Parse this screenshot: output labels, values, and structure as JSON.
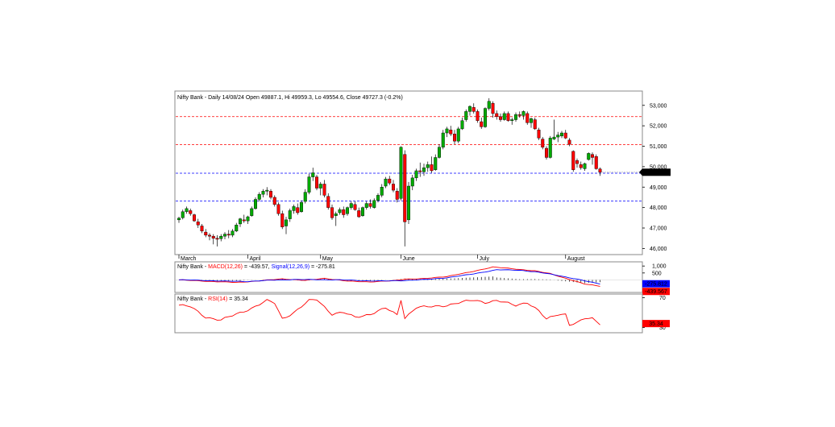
{
  "chart_data": [
    {
      "type": "candlestick",
      "header": {
        "symbol": "Nifty Bank",
        "period": "Daily",
        "date": "14/08/24",
        "open_label": "Open",
        "open": "49887.1",
        "high_label": "Hi",
        "high": "49959.3",
        "low_label": "Lo",
        "low": "49554.6",
        "close_label": "Close",
        "close": "49727.3",
        "change": "(-0.2%)"
      },
      "y_ticks": [
        "53,000",
        "52,000",
        "51,000",
        "50,000",
        "49,000",
        "48,000",
        "47,000",
        "46,000"
      ],
      "y_tick_values": [
        53000,
        52000,
        51000,
        50000,
        49000,
        48000,
        47000,
        46000
      ],
      "ylim": [
        45700,
        53700
      ],
      "x_month_labels": [
        {
          "label": "March",
          "index": 0
        },
        {
          "label": "April",
          "index": 18
        },
        {
          "label": "May",
          "index": 37
        },
        {
          "label": "June",
          "index": 58
        },
        {
          "label": "July",
          "index": 78
        },
        {
          "label": "August",
          "index": 101
        }
      ],
      "last_price_label": "49,727.3",
      "last_price_value": 49727.3,
      "horizontal_levels": [
        {
          "value": 52450,
          "color": "#ff0000"
        },
        {
          "value": 51080,
          "color": "#ff0000"
        },
        {
          "value": 49680,
          "color": "#0000ff"
        },
        {
          "value": 48320,
          "color": "#0000ff"
        }
      ],
      "up_color": "#00aa00",
      "down_color": "#ff0000",
      "ohlc": [
        [
          47400,
          47550,
          47250,
          47480
        ],
        [
          47500,
          47900,
          47420,
          47800
        ],
        [
          47800,
          48050,
          47700,
          47950
        ],
        [
          47850,
          47950,
          47600,
          47700
        ],
        [
          47650,
          47700,
          47300,
          47350
        ],
        [
          47300,
          47450,
          47000,
          47150
        ],
        [
          47100,
          47200,
          46750,
          46850
        ],
        [
          46800,
          46950,
          46550,
          46650
        ],
        [
          46650,
          46750,
          46400,
          46600
        ],
        [
          46600,
          46700,
          46200,
          46500
        ],
        [
          46500,
          46650,
          46100,
          46450
        ],
        [
          46480,
          46700,
          46350,
          46600
        ],
        [
          46600,
          46800,
          46450,
          46700
        ],
        [
          46700,
          46900,
          46500,
          46650
        ],
        [
          46650,
          46950,
          46550,
          46850
        ],
        [
          46850,
          47250,
          46800,
          47150
        ],
        [
          47200,
          47500,
          47050,
          47450
        ],
        [
          47400,
          47650,
          47250,
          47350
        ],
        [
          47350,
          47600,
          47200,
          47550
        ],
        [
          47600,
          48050,
          47550,
          47950
        ],
        [
          47950,
          48500,
          47900,
          48400
        ],
        [
          48400,
          48750,
          48300,
          48650
        ],
        [
          48650,
          48900,
          48500,
          48800
        ],
        [
          48800,
          49000,
          48600,
          48850
        ],
        [
          48800,
          48900,
          48400,
          48500
        ],
        [
          48500,
          48600,
          48050,
          48150
        ],
        [
          48150,
          48250,
          47600,
          47700
        ],
        [
          47700,
          47850,
          46950,
          47050
        ],
        [
          47100,
          47550,
          46700,
          47400
        ],
        [
          47450,
          47950,
          47300,
          47850
        ],
        [
          47850,
          48150,
          47700,
          48050
        ],
        [
          48000,
          48200,
          47650,
          47750
        ],
        [
          47800,
          48350,
          47750,
          48250
        ],
        [
          48300,
          48900,
          48200,
          48750
        ],
        [
          48750,
          49650,
          48650,
          49500
        ],
        [
          49500,
          49950,
          49300,
          49700
        ],
        [
          49500,
          49600,
          48850,
          48950
        ],
        [
          48950,
          49250,
          48600,
          49150
        ],
        [
          49150,
          49350,
          48500,
          48600
        ],
        [
          48550,
          48700,
          47900,
          48000
        ],
        [
          48000,
          48150,
          47400,
          47500
        ],
        [
          47600,
          47800,
          47100,
          47700
        ],
        [
          47750,
          48000,
          47650,
          47900
        ],
        [
          47900,
          48050,
          47500,
          47650
        ],
        [
          47700,
          48050,
          47600,
          48000
        ],
        [
          48000,
          48300,
          47900,
          48200
        ],
        [
          48150,
          48300,
          47850,
          47900
        ],
        [
          47850,
          48000,
          47500,
          47550
        ],
        [
          47600,
          48050,
          47550,
          48000
        ],
        [
          48000,
          48300,
          47900,
          48200
        ],
        [
          48200,
          48400,
          47950,
          48050
        ],
        [
          48000,
          48450,
          47950,
          48350
        ],
        [
          48350,
          48700,
          48250,
          48600
        ],
        [
          48600,
          49150,
          48500,
          49000
        ],
        [
          49050,
          49500,
          48950,
          49400
        ],
        [
          49400,
          49550,
          49100,
          49200
        ],
        [
          49150,
          49350,
          48750,
          48850
        ],
        [
          48800,
          48950,
          48250,
          48400
        ],
        [
          48450,
          51000,
          48350,
          50950
        ],
        [
          50600,
          50800,
          46100,
          47300
        ],
        [
          47400,
          49250,
          47200,
          49050
        ],
        [
          49050,
          49600,
          48850,
          49450
        ],
        [
          49450,
          49900,
          49300,
          49800
        ],
        [
          49800,
          50200,
          49500,
          49750
        ],
        [
          49750,
          50150,
          49550,
          49950
        ],
        [
          49950,
          50250,
          49750,
          50100
        ],
        [
          50100,
          50500,
          49700,
          49800
        ],
        [
          49850,
          50600,
          49800,
          50450
        ],
        [
          50450,
          51100,
          50400,
          50950
        ],
        [
          50950,
          51800,
          50850,
          51650
        ],
        [
          51650,
          51950,
          51450,
          51850
        ],
        [
          51800,
          52000,
          51500,
          51600
        ],
        [
          51600,
          51800,
          51100,
          51250
        ],
        [
          51250,
          51950,
          51150,
          51850
        ],
        [
          51850,
          52400,
          51800,
          52250
        ],
        [
          52300,
          52800,
          52200,
          52700
        ],
        [
          52700,
          53000,
          52500,
          52950
        ],
        [
          52900,
          53100,
          52600,
          52700
        ],
        [
          52700,
          52800,
          52150,
          52250
        ],
        [
          52200,
          52400,
          51850,
          51950
        ],
        [
          51950,
          52900,
          51900,
          52850
        ],
        [
          52850,
          53350,
          52750,
          53200
        ],
        [
          53100,
          53200,
          52400,
          52600
        ],
        [
          52600,
          52750,
          52300,
          52450
        ],
        [
          52450,
          52600,
          52200,
          52300
        ],
        [
          52300,
          52700,
          52250,
          52600
        ],
        [
          52600,
          52700,
          52200,
          52250
        ],
        [
          52250,
          52400,
          52050,
          52300
        ],
        [
          52300,
          52650,
          52200,
          52550
        ],
        [
          52550,
          52700,
          52400,
          52500
        ],
        [
          52500,
          52750,
          52300,
          52700
        ],
        [
          52600,
          52700,
          52050,
          52150
        ],
        [
          52150,
          52400,
          51900,
          52350
        ],
        [
          52300,
          52400,
          51800,
          51850
        ],
        [
          51800,
          51900,
          51300,
          51400
        ],
        [
          51350,
          51450,
          50850,
          50950
        ],
        [
          50900,
          51000,
          50350,
          50450
        ],
        [
          50450,
          51500,
          50400,
          51400
        ],
        [
          51350,
          52300,
          51300,
          51450
        ],
        [
          51450,
          51700,
          51200,
          51550
        ],
        [
          51500,
          51750,
          51400,
          51650
        ],
        [
          51650,
          51800,
          51350,
          51400
        ],
        [
          51300,
          51400,
          51000,
          51100
        ],
        [
          50750,
          50800,
          49750,
          49850
        ],
        [
          50300,
          50400,
          49950,
          50150
        ],
        [
          50100,
          50250,
          49850,
          49950
        ],
        [
          49900,
          50200,
          49800,
          50150
        ],
        [
          50350,
          50700,
          50300,
          50650
        ],
        [
          50600,
          50700,
          50100,
          50450
        ],
        [
          50500,
          50600,
          49850,
          49900
        ],
        [
          49887.1,
          49959.3,
          49554.6,
          49727.3
        ]
      ]
    },
    {
      "type": "line",
      "label": {
        "symbol": "Nifty Bank",
        "macd_name": "MACD(12,26)",
        "macd_value": "-439.57",
        "signal_name": "Signal(12,26,9)",
        "signal_value": "-275.81"
      },
      "y_ticks": [
        "1,000",
        "500"
      ],
      "y_tick_values": [
        1000,
        500
      ],
      "ylim": [
        -900,
        1300
      ],
      "signal_box": {
        "label": "-275.812",
        "value": -275.81,
        "color": "#0000ff"
      },
      "macd_box": {
        "label": "-439.567",
        "value": -439.57,
        "color": "#ff0000"
      },
      "series": [
        {
          "name": "MACD(12,26)",
          "color": "#ff0000",
          "knots": [
            [
              0,
              0
            ],
            [
              5,
              -60
            ],
            [
              10,
              -130
            ],
            [
              15,
              -180
            ],
            [
              20,
              -90
            ],
            [
              27,
              80
            ],
            [
              33,
              -40
            ],
            [
              38,
              120
            ],
            [
              44,
              -90
            ],
            [
              50,
              -140
            ],
            [
              56,
              -60
            ],
            [
              59,
              60
            ],
            [
              64,
              90
            ],
            [
              70,
              250
            ],
            [
              76,
              560
            ],
            [
              82,
              930
            ],
            [
              88,
              780
            ],
            [
              93,
              650
            ],
            [
              97,
              450
            ],
            [
              101,
              120
            ],
            [
              106,
              -300
            ],
            [
              110,
              -439.57
            ]
          ]
        },
        {
          "name": "Signal(12,26,9)",
          "color": "#0000ff",
          "knots": [
            [
              0,
              10
            ],
            [
              6,
              -30
            ],
            [
              12,
              -90
            ],
            [
              18,
              -110
            ],
            [
              24,
              -20
            ],
            [
              30,
              30
            ],
            [
              36,
              20
            ],
            [
              42,
              10
            ],
            [
              48,
              -60
            ],
            [
              54,
              -80
            ],
            [
              59,
              -40
            ],
            [
              65,
              40
            ],
            [
              70,
              160
            ],
            [
              76,
              390
            ],
            [
              83,
              730
            ],
            [
              89,
              700
            ],
            [
              94,
              550
            ],
            [
              99,
              330
            ],
            [
              104,
              50
            ],
            [
              108,
              -180
            ],
            [
              110,
              -275.81
            ]
          ]
        }
      ]
    },
    {
      "type": "line",
      "label": {
        "symbol": "Nifty Bank",
        "rsi_name": "RSI(14)",
        "rsi_value": "35.34"
      },
      "y_ticks": [
        "70",
        "30"
      ],
      "y_tick_values": [
        70,
        30
      ],
      "ylim": [
        23,
        75
      ],
      "rsi_box": {
        "label": "35.34",
        "value": 35.34,
        "color": "#ff0000"
      },
      "series": [
        {
          "name": "RSI(14)",
          "color": "#ff0000",
          "knots": [
            [
              0,
              60
            ],
            [
              3,
              58
            ],
            [
              7,
              44
            ],
            [
              11,
              40
            ],
            [
              14,
              46
            ],
            [
              19,
              56
            ],
            [
              23,
              66
            ],
            [
              25,
              63
            ],
            [
              27,
              42
            ],
            [
              30,
              50
            ],
            [
              34,
              66
            ],
            [
              36,
              68
            ],
            [
              40,
              48
            ],
            [
              43,
              50
            ],
            [
              46,
              44
            ],
            [
              50,
              48
            ],
            [
              54,
              56
            ],
            [
              57,
              47
            ],
            [
              58,
              68
            ],
            [
              59,
              43
            ],
            [
              62,
              57
            ],
            [
              66,
              58
            ],
            [
              70,
              60
            ],
            [
              74,
              64
            ],
            [
              77,
              67
            ],
            [
              80,
              64
            ],
            [
              83,
              66
            ],
            [
              88,
              60
            ],
            [
              91,
              64
            ],
            [
              94,
              52
            ],
            [
              96,
              41
            ],
            [
              99,
              48
            ],
            [
              101,
              48
            ],
            [
              102,
              34
            ],
            [
              104,
              36
            ],
            [
              106,
              42
            ],
            [
              108,
              42
            ],
            [
              110,
              35.34
            ]
          ]
        }
      ]
    }
  ]
}
